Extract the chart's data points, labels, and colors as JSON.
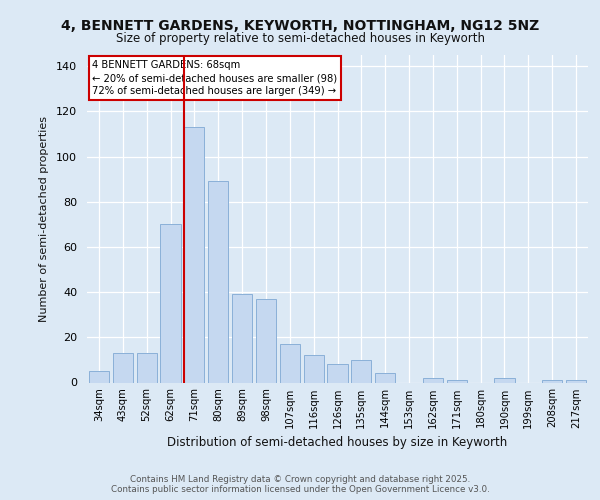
{
  "title_line1": "4, BENNETT GARDENS, KEYWORTH, NOTTINGHAM, NG12 5NZ",
  "title_line2": "Size of property relative to semi-detached houses in Keyworth",
  "xlabel": "Distribution of semi-detached houses by size in Keyworth",
  "ylabel": "Number of semi-detached properties",
  "categories": [
    "34sqm",
    "43sqm",
    "52sqm",
    "62sqm",
    "71sqm",
    "80sqm",
    "89sqm",
    "98sqm",
    "107sqm",
    "116sqm",
    "126sqm",
    "135sqm",
    "144sqm",
    "153sqm",
    "162sqm",
    "171sqm",
    "180sqm",
    "190sqm",
    "199sqm",
    "208sqm",
    "217sqm"
  ],
  "values": [
    5,
    13,
    13,
    70,
    113,
    89,
    39,
    37,
    17,
    12,
    8,
    10,
    4,
    0,
    2,
    1,
    0,
    2,
    0,
    1,
    1
  ],
  "bar_color": "#c5d8f0",
  "bar_edge_color": "#8ab0d8",
  "red_line_index": 4,
  "annotation_title": "4 BENNETT GARDENS: 68sqm",
  "annotation_line2": "← 20% of semi-detached houses are smaller (98)",
  "annotation_line3": "72% of semi-detached houses are larger (349) →",
  "red_line_color": "#cc0000",
  "ylim": [
    0,
    145
  ],
  "yticks": [
    0,
    20,
    40,
    60,
    80,
    100,
    120,
    140
  ],
  "footer_line1": "Contains HM Land Registry data © Crown copyright and database right 2025.",
  "footer_line2": "Contains public sector information licensed under the Open Government Licence v3.0.",
  "bg_color": "#dce9f5",
  "plot_bg_color": "#dce9f5"
}
